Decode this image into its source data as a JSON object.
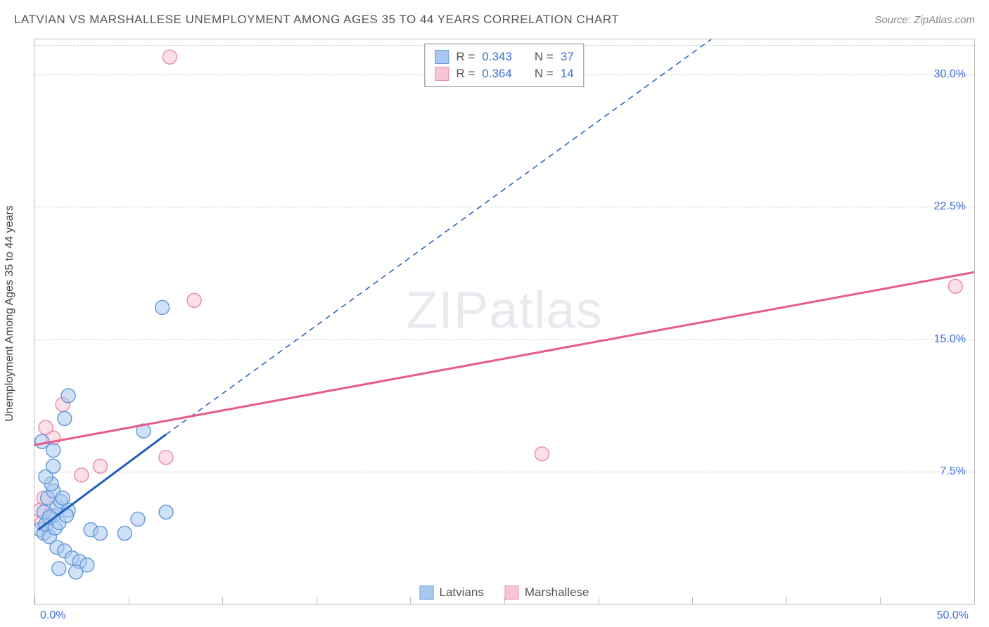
{
  "title": "LATVIAN VS MARSHALLESE UNEMPLOYMENT AMONG AGES 35 TO 44 YEARS CORRELATION CHART",
  "source": "Source: ZipAtlas.com",
  "axis": {
    "y_title": "Unemployment Among Ages 35 to 44 years",
    "x_min_label": "0.0%",
    "x_max_label": "50.0%",
    "xlim": [
      0,
      50
    ],
    "ylim": [
      0,
      32
    ],
    "y_ticks": [
      7.5,
      15.0,
      22.5,
      30.0
    ],
    "y_tick_labels": [
      "7.5%",
      "15.0%",
      "22.5%",
      "30.0%"
    ],
    "x_tick_positions": [
      0,
      5,
      10,
      15,
      20,
      25,
      30,
      35,
      40,
      45,
      50
    ],
    "grid_color": "#cccccc"
  },
  "colors": {
    "series_a_fill": "#a8c8f0",
    "series_a_stroke": "#6a9bd8",
    "series_a_line": "#1f5fbf",
    "series_b_fill": "#f7c6d6",
    "series_b_stroke": "#e88fb0",
    "series_b_line": "#e85a8a",
    "value_text": "#3b6fd6",
    "title_text": "#555555",
    "background": "#ffffff"
  },
  "legend_top": [
    {
      "swatch": "a",
      "r_label": "R =",
      "r_value": "0.343",
      "n_label": "N =",
      "n_value": "37"
    },
    {
      "swatch": "b",
      "r_label": "R =",
      "r_value": "0.364",
      "n_label": "N =",
      "n_value": "14"
    }
  ],
  "legend_bottom": [
    {
      "swatch": "a",
      "label": "Latvians"
    },
    {
      "swatch": "b",
      "label": "Marshallese"
    }
  ],
  "watermark": "ZIPatlas",
  "series_a": {
    "name": "Latvians",
    "marker_radius": 10,
    "points": [
      [
        0.3,
        4.2
      ],
      [
        0.5,
        4.0
      ],
      [
        0.6,
        4.5
      ],
      [
        0.8,
        3.8
      ],
      [
        1.0,
        5.0
      ],
      [
        1.1,
        4.3
      ],
      [
        1.2,
        5.5
      ],
      [
        0.7,
        6.0
      ],
      [
        1.4,
        5.8
      ],
      [
        1.0,
        6.4
      ],
      [
        1.5,
        6.0
      ],
      [
        0.5,
        5.2
      ],
      [
        1.8,
        5.3
      ],
      [
        0.9,
        6.8
      ],
      [
        1.2,
        3.2
      ],
      [
        1.6,
        3.0
      ],
      [
        2.0,
        2.6
      ],
      [
        2.4,
        2.4
      ],
      [
        2.8,
        2.2
      ],
      [
        1.3,
        2.0
      ],
      [
        2.2,
        1.8
      ],
      [
        3.0,
        4.2
      ],
      [
        3.5,
        4.0
      ],
      [
        4.8,
        4.0
      ],
      [
        5.5,
        4.8
      ],
      [
        7.0,
        5.2
      ],
      [
        0.4,
        9.2
      ],
      [
        1.6,
        10.5
      ],
      [
        1.8,
        11.8
      ],
      [
        1.0,
        8.7
      ],
      [
        5.8,
        9.8
      ],
      [
        0.6,
        7.2
      ],
      [
        1.0,
        7.8
      ],
      [
        0.8,
        4.9
      ],
      [
        1.3,
        4.6
      ],
      [
        1.7,
        5.0
      ],
      [
        6.8,
        16.8
      ]
    ],
    "trend_line": {
      "x1": 0.2,
      "y1": 4.2,
      "x2": 7.0,
      "y2": 9.6
    },
    "trend_extrapolate": {
      "x1": 7.0,
      "y1": 9.6,
      "x2": 36.0,
      "y2": 32.0
    }
  },
  "series_b": {
    "name": "Marshallese",
    "marker_radius": 10,
    "points": [
      [
        0.3,
        5.3
      ],
      [
        0.5,
        6.0
      ],
      [
        1.0,
        9.4
      ],
      [
        0.6,
        10.0
      ],
      [
        2.5,
        7.3
      ],
      [
        3.5,
        7.8
      ],
      [
        1.5,
        11.3
      ],
      [
        7.0,
        8.3
      ],
      [
        8.5,
        17.2
      ],
      [
        27.0,
        8.5
      ],
      [
        49.0,
        18.0
      ],
      [
        0.8,
        5.0
      ],
      [
        0.4,
        4.6
      ],
      [
        7.2,
        31.0
      ]
    ],
    "trend_line": {
      "x1": 0,
      "y1": 9.0,
      "x2": 50.0,
      "y2": 18.8
    }
  }
}
